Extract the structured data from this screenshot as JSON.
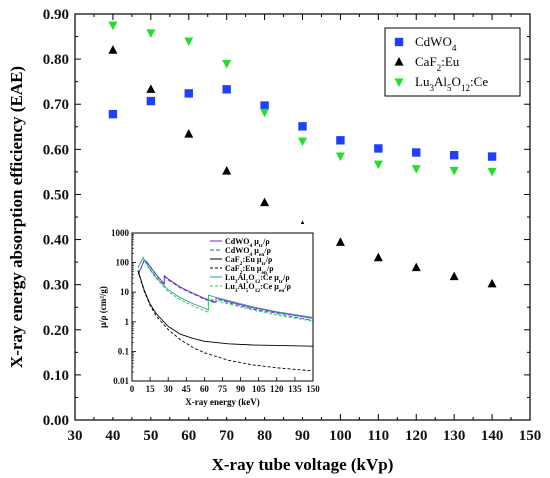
{
  "chart_data": [
    {
      "type": "scatter",
      "title": "",
      "xlabel": "X-ray tube voltage (kVp)",
      "ylabel": "X-ray energy absorption efficiency (EAE)",
      "xlim": [
        30,
        150
      ],
      "ylim": [
        0.0,
        0.9
      ],
      "xticks": [
        "30",
        "40",
        "50",
        "60",
        "70",
        "80",
        "90",
        "100",
        "110",
        "120",
        "130",
        "140",
        "150"
      ],
      "yticks": [
        "0.00",
        "0.10",
        "0.20",
        "0.30",
        "0.40",
        "0.50",
        "0.60",
        "0.70",
        "0.80",
        "0.90"
      ],
      "grid": false,
      "legend_position": "top-right",
      "x": [
        40,
        50,
        60,
        70,
        80,
        90,
        100,
        110,
        120,
        130,
        140
      ],
      "series": [
        {
          "name": "CdWO4",
          "name_display": [
            "CdWO",
            "4",
            ""
          ],
          "marker": "square",
          "color": "#1f3fff",
          "values": [
            0.678,
            0.707,
            0.724,
            0.733,
            0.697,
            0.651,
            0.62,
            0.602,
            0.593,
            0.587,
            0.584
          ]
        },
        {
          "name": "CaF2:Eu",
          "name_display": [
            "CaF",
            "2",
            ":Eu"
          ],
          "marker": "triangle-up",
          "color": "#000000",
          "values": [
            0.82,
            0.733,
            0.634,
            0.552,
            0.482,
            0.431,
            0.394,
            0.36,
            0.338,
            0.318,
            0.302
          ]
        },
        {
          "name": "Lu3Al5O12:Ce",
          "name_display": [
            "Lu",
            "3",
            "Al",
            "5",
            "O",
            "12",
            ":Ce"
          ],
          "marker": "triangle-down",
          "color": "#22e02a",
          "values": [
            0.875,
            0.858,
            0.84,
            0.79,
            0.682,
            0.618,
            0.585,
            0.567,
            0.557,
            0.553,
            0.551
          ]
        }
      ]
    },
    {
      "type": "line",
      "title": "",
      "xlabel": "X-ray energy (keV)",
      "ylabel": "μ/ρ (cm²/g)",
      "xlim": [
        0,
        150
      ],
      "ylim_log": [
        0.01,
        1000
      ],
      "yscale": "log",
      "xticks": [
        "0",
        "15",
        "30",
        "45",
        "60",
        "75",
        "90",
        "105",
        "120",
        "135",
        "150"
      ],
      "yticks": [
        "0.01",
        "0.1",
        "1",
        "10",
        "100",
        "1000"
      ],
      "legend_position": "top-right",
      "series": [
        {
          "name": "CdWO4 μtr/ρ",
          "label_parts": [
            "CdWO",
            "4",
            " μ",
            "tr",
            "/ρ"
          ],
          "color": "#7b1fc9",
          "dash": "",
          "x": [
            5,
            8,
            10,
            12,
            15,
            20,
            25,
            26.7,
            26.8,
            30,
            40,
            50,
            60,
            69.5,
            69.6,
            80,
            100,
            120,
            150
          ],
          "y": [
            40,
            75,
            120,
            110,
            75,
            40,
            23,
            19,
            36,
            28,
            15,
            9.5,
            6.2,
            4.6,
            6.5,
            4.8,
            3.0,
            2.1,
            1.3
          ]
        },
        {
          "name": "CdWO4 μen/ρ",
          "label_parts": [
            "CdWO",
            "4",
            " μ",
            "en",
            "/ρ"
          ],
          "color": "#3a4dd8",
          "dash": "4,2",
          "x": [
            5,
            8,
            10,
            12,
            15,
            20,
            25,
            26.7,
            26.8,
            30,
            40,
            50,
            60,
            69.5,
            69.6,
            80,
            100,
            120,
            150
          ],
          "y": [
            38,
            72,
            115,
            105,
            72,
            38,
            22,
            18,
            34,
            26,
            14,
            9.0,
            5.8,
            4.3,
            6.0,
            4.4,
            2.7,
            1.9,
            1.1
          ]
        },
        {
          "name": "CaF2:Eu μtr/ρ",
          "label_parts": [
            "CaF",
            "2",
            ":Eu μ",
            "tr",
            "/ρ"
          ],
          "color": "#000000",
          "dash": "",
          "x": [
            5,
            8,
            10,
            15,
            20,
            30,
            40,
            50,
            60,
            80,
            100,
            120,
            150
          ],
          "y": [
            55,
            22,
            12,
            4.0,
            1.9,
            0.7,
            0.38,
            0.28,
            0.22,
            0.18,
            0.165,
            0.16,
            0.15
          ]
        },
        {
          "name": "CaF2:Eu μen/ρ",
          "label_parts": [
            "CaF",
            "2",
            ":Eu μ",
            "en",
            "/ρ"
          ],
          "color": "#000000",
          "dash": "3,2",
          "x": [
            5,
            8,
            10,
            15,
            20,
            30,
            40,
            50,
            60,
            80,
            100,
            120,
            150
          ],
          "y": [
            52,
            20,
            11,
            3.6,
            1.6,
            0.55,
            0.25,
            0.14,
            0.09,
            0.05,
            0.035,
            0.028,
            0.022
          ]
        },
        {
          "name": "Lu3Al5O12:Ce μtr/ρ",
          "label_parts": [
            "Lu",
            "3",
            "Al",
            "5",
            "O",
            "12",
            ":Ce μ",
            "tr",
            "/ρ"
          ],
          "color": "#2aa8a0",
          "dash": "",
          "x": [
            5,
            8,
            9.2,
            9.3,
            10,
            12,
            15,
            20,
            30,
            40,
            50,
            60,
            63.2,
            63.3,
            70,
            80,
            100,
            120,
            150
          ],
          "y": [
            70,
            120,
            140,
            150,
            130,
            95,
            60,
            32,
            12,
            6.5,
            4.2,
            2.9,
            2.5,
            8.0,
            6.6,
            5.2,
            3.2,
            2.2,
            1.4
          ]
        },
        {
          "name": "Lu3Al5O12:Ce μen/ρ",
          "label_parts": [
            "Lu",
            "3",
            "Al",
            "5",
            "O",
            "12",
            ":Ce μ",
            "en",
            "/ρ"
          ],
          "color": "#22d02a",
          "dash": "3,2",
          "x": [
            5,
            8,
            9.2,
            9.3,
            10,
            12,
            15,
            20,
            30,
            40,
            50,
            60,
            63.2,
            63.3,
            70,
            80,
            100,
            120,
            150
          ],
          "y": [
            66,
            115,
            132,
            142,
            122,
            88,
            55,
            29,
            10.5,
            5.6,
            3.5,
            2.4,
            2.1,
            6.2,
            5.1,
            4.0,
            2.5,
            1.7,
            1.05
          ]
        }
      ]
    }
  ]
}
